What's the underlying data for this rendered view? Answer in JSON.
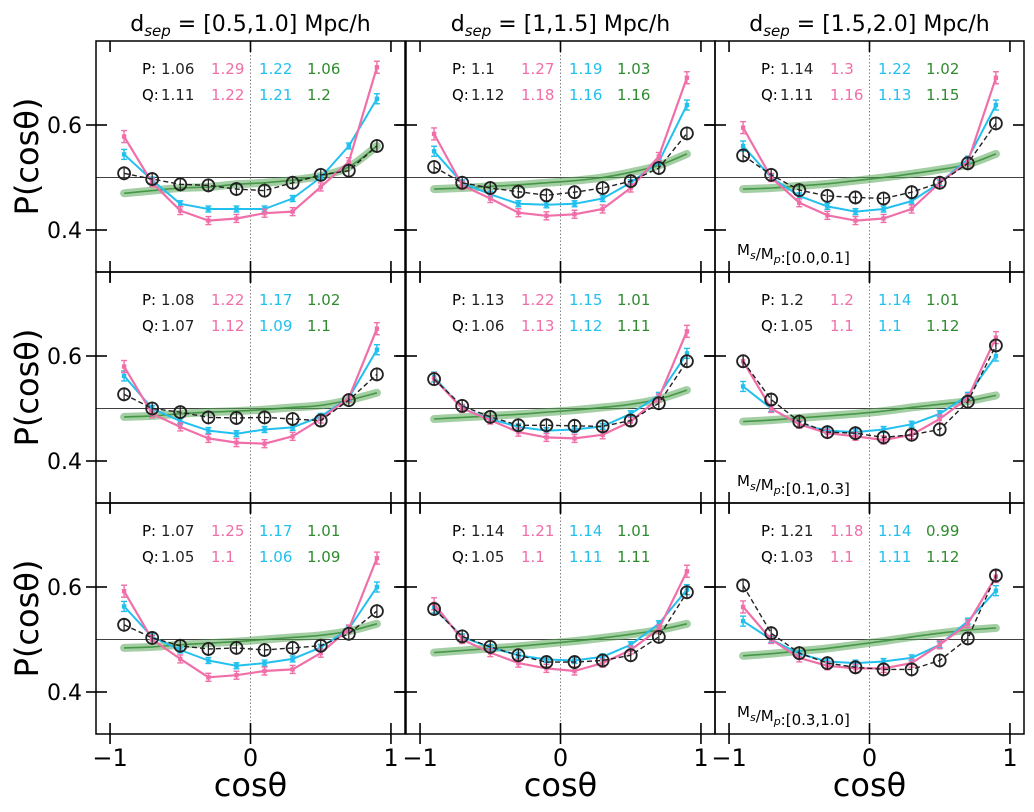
{
  "figure": {
    "ylabel": "P(cosθ)",
    "xlabel": "cosθ",
    "row_labels": [
      "M_s/M_p:[0.0,0.1]",
      "M_s/M_p:[0.1,0.3]",
      "M_s/M_p:[0.3,1.0]"
    ],
    "col_titles": [
      {
        "pre": "d",
        "sub": "sep",
        "post": " = [0.5,1.0] Mpc/h"
      },
      {
        "pre": "d",
        "sub": "sep",
        "post": " = [1,1.5] Mpc/h"
      },
      {
        "pre": "d",
        "sub": "sep",
        "post": " = [1.5,2.0] Mpc/h"
      }
    ],
    "colors": {
      "pink": "#f06fa8",
      "blue": "#22c0ef",
      "green": "#2e8b2e",
      "black": "#222222",
      "band": "#5aa65a"
    }
  },
  "chart_data": [
    {
      "type": "line",
      "row": 0,
      "col": 0,
      "title": "d_sep = [0.5,1.0] Mpc/h",
      "xlabel": "cosθ",
      "ylabel": "P(cosθ)",
      "xlim": [
        -1.1,
        1.1
      ],
      "ylim": [
        0.32,
        0.76
      ],
      "xticks": [
        -1,
        0,
        1
      ],
      "yticks": [
        0.4,
        0.6
      ],
      "reference_y": 0.5,
      "x": [
        -0.9,
        -0.7,
        -0.5,
        -0.3,
        -0.1,
        0.1,
        0.3,
        0.5,
        0.7,
        0.9
      ],
      "stats": {
        "P": [
          "1.06",
          "1.29",
          "1.22",
          "1.06"
        ],
        "Q": [
          "1.11",
          "1.22",
          "1.21",
          "1.2"
        ]
      },
      "series": [
        {
          "name": "pink",
          "values": [
            0.578,
            0.49,
            0.437,
            0.418,
            0.422,
            0.432,
            0.435,
            0.482,
            0.53,
            0.71
          ]
        },
        {
          "name": "blue",
          "values": [
            0.544,
            0.495,
            0.45,
            0.44,
            0.44,
            0.44,
            0.46,
            0.5,
            0.56,
            0.65
          ]
        },
        {
          "name": "black",
          "values": [
            0.508,
            0.497,
            0.487,
            0.485,
            0.478,
            0.475,
            0.49,
            0.505,
            0.513,
            0.56
          ]
        },
        {
          "name": "green",
          "values": [
            0.47,
            0.475,
            0.48,
            0.482,
            0.487,
            0.49,
            0.495,
            0.503,
            0.52,
            0.56
          ]
        }
      ]
    },
    {
      "type": "line",
      "row": 0,
      "col": 1,
      "title": "d_sep = [1,1.5] Mpc/h",
      "xlabel": "cosθ",
      "ylabel": "P(cosθ)",
      "xlim": [
        -1.1,
        1.1
      ],
      "ylim": [
        0.32,
        0.76
      ],
      "xticks": [
        -1,
        0,
        1
      ],
      "yticks": [
        0.4,
        0.6
      ],
      "reference_y": 0.5,
      "x": [
        -0.9,
        -0.7,
        -0.5,
        -0.3,
        -0.1,
        0.1,
        0.3,
        0.5,
        0.7,
        0.9
      ],
      "stats": {
        "P": [
          "1.1",
          "1.27",
          "1.19",
          "1.03"
        ],
        "Q": [
          "1.12",
          "1.18",
          "1.16",
          "1.16"
        ]
      },
      "series": [
        {
          "name": "pink",
          "values": [
            0.583,
            0.485,
            0.46,
            0.433,
            0.427,
            0.43,
            0.44,
            0.48,
            0.54,
            0.69
          ]
        },
        {
          "name": "blue",
          "values": [
            0.55,
            0.49,
            0.468,
            0.45,
            0.448,
            0.45,
            0.46,
            0.49,
            0.53,
            0.638
          ]
        },
        {
          "name": "black",
          "values": [
            0.52,
            0.49,
            0.48,
            0.473,
            0.466,
            0.472,
            0.48,
            0.493,
            0.518,
            0.584
          ]
        },
        {
          "name": "green",
          "values": [
            0.478,
            0.48,
            0.483,
            0.486,
            0.49,
            0.494,
            0.5,
            0.51,
            0.523,
            0.545
          ]
        }
      ]
    },
    {
      "type": "line",
      "row": 0,
      "col": 2,
      "title": "d_sep = [1.5,2.0] Mpc/h",
      "xlabel": "cosθ",
      "ylabel": "P(cosθ)",
      "xlim": [
        -1.1,
        1.1
      ],
      "ylim": [
        0.32,
        0.76
      ],
      "xticks": [
        -1,
        0,
        1
      ],
      "yticks": [
        0.4,
        0.6
      ],
      "reference_y": 0.5,
      "x": [
        -0.9,
        -0.7,
        -0.5,
        -0.3,
        -0.1,
        0.1,
        0.3,
        0.5,
        0.7,
        0.9
      ],
      "stats": {
        "P": [
          "1.14",
          "1.3",
          "1.22",
          "1.02"
        ],
        "Q": [
          "1.11",
          "1.16",
          "1.13",
          "1.15"
        ]
      },
      "series": [
        {
          "name": "pink",
          "values": [
            0.595,
            0.5,
            0.452,
            0.428,
            0.418,
            0.422,
            0.44,
            0.49,
            0.53,
            0.69
          ]
        },
        {
          "name": "blue",
          "values": [
            0.56,
            0.5,
            0.465,
            0.445,
            0.435,
            0.44,
            0.455,
            0.49,
            0.535,
            0.638
          ]
        },
        {
          "name": "black",
          "values": [
            0.542,
            0.505,
            0.476,
            0.465,
            0.462,
            0.46,
            0.472,
            0.49,
            0.527,
            0.603
          ]
        },
        {
          "name": "green",
          "values": [
            0.478,
            0.48,
            0.484,
            0.488,
            0.494,
            0.5,
            0.507,
            0.515,
            0.525,
            0.545
          ]
        }
      ]
    },
    {
      "type": "line",
      "row": 1,
      "col": 0,
      "title": "d_sep = [0.5,1.0] Mpc/h",
      "xlabel": "cosθ",
      "ylabel": "P(cosθ)",
      "xlim": [
        -1.1,
        1.1
      ],
      "ylim": [
        0.32,
        0.76
      ],
      "xticks": [
        -1,
        0,
        1
      ],
      "yticks": [
        0.4,
        0.6
      ],
      "reference_y": 0.5,
      "x": [
        -0.9,
        -0.7,
        -0.5,
        -0.3,
        -0.1,
        0.1,
        0.3,
        0.5,
        0.7,
        0.9
      ],
      "stats": {
        "P": [
          "1.08",
          "1.22",
          "1.17",
          "1.02"
        ],
        "Q": [
          "1.07",
          "1.12",
          "1.09",
          "1.1"
        ]
      },
      "series": [
        {
          "name": "pink",
          "values": [
            0.58,
            0.49,
            0.465,
            0.443,
            0.435,
            0.433,
            0.447,
            0.48,
            0.52,
            0.652
          ]
        },
        {
          "name": "blue",
          "values": [
            0.562,
            0.5,
            0.476,
            0.458,
            0.452,
            0.46,
            0.464,
            0.485,
            0.52,
            0.612
          ]
        },
        {
          "name": "black",
          "values": [
            0.527,
            0.5,
            0.493,
            0.483,
            0.482,
            0.483,
            0.48,
            0.477,
            0.516,
            0.565
          ]
        },
        {
          "name": "green",
          "values": [
            0.484,
            0.486,
            0.49,
            0.493,
            0.495,
            0.498,
            0.502,
            0.506,
            0.516,
            0.53
          ]
        }
      ]
    },
    {
      "type": "line",
      "row": 1,
      "col": 1,
      "title": "d_sep = [1,1.5] Mpc/h",
      "xlabel": "cosθ",
      "ylabel": "P(cosθ)",
      "xlim": [
        -1.1,
        1.1
      ],
      "ylim": [
        0.32,
        0.76
      ],
      "xticks": [
        -1,
        0,
        1
      ],
      "yticks": [
        0.4,
        0.6
      ],
      "reference_y": 0.5,
      "x": [
        -0.9,
        -0.7,
        -0.5,
        -0.3,
        -0.1,
        0.1,
        0.3,
        0.5,
        0.7,
        0.9
      ],
      "stats": {
        "P": [
          "1.13",
          "1.22",
          "1.15",
          "1.01"
        ],
        "Q": [
          "1.06",
          "1.13",
          "1.12",
          "1.11"
        ]
      },
      "series": [
        {
          "name": "pink",
          "values": [
            0.557,
            0.5,
            0.478,
            0.455,
            0.445,
            0.443,
            0.45,
            0.475,
            0.52,
            0.647
          ]
        },
        {
          "name": "blue",
          "values": [
            0.56,
            0.5,
            0.48,
            0.465,
            0.458,
            0.46,
            0.466,
            0.49,
            0.525,
            0.605
          ]
        },
        {
          "name": "black",
          "values": [
            0.556,
            0.505,
            0.484,
            0.468,
            0.468,
            0.467,
            0.466,
            0.477,
            0.51,
            0.59
          ]
        },
        {
          "name": "green",
          "values": [
            0.48,
            0.483,
            0.486,
            0.489,
            0.493,
            0.497,
            0.502,
            0.508,
            0.518,
            0.535
          ]
        }
      ]
    },
    {
      "type": "line",
      "row": 1,
      "col": 2,
      "title": "d_sep = [1.5,2.0] Mpc/h",
      "xlabel": "cosθ",
      "ylabel": "P(cosθ)",
      "xlim": [
        -1.1,
        1.1
      ],
      "ylim": [
        0.32,
        0.76
      ],
      "xticks": [
        -1,
        0,
        1
      ],
      "yticks": [
        0.4,
        0.6
      ],
      "reference_y": 0.5,
      "x": [
        -0.9,
        -0.7,
        -0.5,
        -0.3,
        -0.1,
        0.1,
        0.3,
        0.5,
        0.7,
        0.9
      ],
      "stats": {
        "P": [
          "1.2",
          "1.2",
          "1.14",
          "1.01"
        ],
        "Q": [
          "1.05",
          "1.1",
          "1.1",
          "1.12"
        ]
      },
      "series": [
        {
          "name": "pink",
          "values": [
            0.59,
            0.5,
            0.47,
            0.453,
            0.447,
            0.44,
            0.45,
            0.48,
            0.52,
            0.635
          ]
        },
        {
          "name": "blue",
          "values": [
            0.542,
            0.5,
            0.47,
            0.458,
            0.455,
            0.46,
            0.47,
            0.49,
            0.525,
            0.6
          ]
        },
        {
          "name": "black",
          "values": [
            0.59,
            0.517,
            0.475,
            0.455,
            0.453,
            0.445,
            0.45,
            0.46,
            0.513,
            0.62
          ]
        },
        {
          "name": "green",
          "values": [
            0.475,
            0.478,
            0.482,
            0.486,
            0.49,
            0.495,
            0.502,
            0.508,
            0.514,
            0.525
          ]
        }
      ]
    },
    {
      "type": "line",
      "row": 2,
      "col": 0,
      "title": "d_sep = [0.5,1.0] Mpc/h",
      "xlabel": "cosθ",
      "ylabel": "P(cosθ)",
      "xlim": [
        -1.1,
        1.1
      ],
      "ylim": [
        0.32,
        0.76
      ],
      "xticks": [
        -1,
        0,
        1
      ],
      "yticks": [
        0.4,
        0.6
      ],
      "reference_y": 0.5,
      "x": [
        -0.9,
        -0.7,
        -0.5,
        -0.3,
        -0.1,
        0.1,
        0.3,
        0.5,
        0.7,
        0.9
      ],
      "stats": {
        "P": [
          "1.07",
          "1.25",
          "1.17",
          "1.01"
        ],
        "Q": [
          "1.05",
          "1.1",
          "1.06",
          "1.09"
        ]
      },
      "series": [
        {
          "name": "pink",
          "values": [
            0.592,
            0.5,
            0.463,
            0.428,
            0.432,
            0.44,
            0.443,
            0.474,
            0.52,
            0.655
          ]
        },
        {
          "name": "blue",
          "values": [
            0.563,
            0.505,
            0.48,
            0.46,
            0.45,
            0.455,
            0.463,
            0.485,
            0.52,
            0.6
          ]
        },
        {
          "name": "black",
          "values": [
            0.528,
            0.503,
            0.488,
            0.482,
            0.484,
            0.48,
            0.484,
            0.488,
            0.511,
            0.554
          ]
        },
        {
          "name": "green",
          "values": [
            0.484,
            0.486,
            0.49,
            0.493,
            0.496,
            0.5,
            0.504,
            0.508,
            0.516,
            0.53
          ]
        }
      ]
    },
    {
      "type": "line",
      "row": 2,
      "col": 1,
      "title": "d_sep = [1,1.5] Mpc/h",
      "xlabel": "cosθ",
      "ylabel": "P(cosθ)",
      "xlim": [
        -1.1,
        1.1
      ],
      "ylim": [
        0.32,
        0.76
      ],
      "xticks": [
        -1,
        0,
        1
      ],
      "yticks": [
        0.4,
        0.6
      ],
      "reference_y": 0.5,
      "x": [
        -0.9,
        -0.7,
        -0.5,
        -0.3,
        -0.1,
        0.1,
        0.3,
        0.5,
        0.7,
        0.9
      ],
      "stats": {
        "P": [
          "1.14",
          "1.21",
          "1.14",
          "1.01"
        ],
        "Q": [
          "1.05",
          "1.1",
          "1.11",
          "1.11"
        ]
      },
      "series": [
        {
          "name": "pink",
          "values": [
            0.568,
            0.5,
            0.475,
            0.455,
            0.445,
            0.44,
            0.455,
            0.48,
            0.52,
            0.63
          ]
        },
        {
          "name": "blue",
          "values": [
            0.56,
            0.505,
            0.485,
            0.47,
            0.462,
            0.46,
            0.467,
            0.49,
            0.53,
            0.595
          ]
        },
        {
          "name": "black",
          "values": [
            0.558,
            0.506,
            0.486,
            0.47,
            0.457,
            0.457,
            0.46,
            0.47,
            0.505,
            0.59
          ]
        },
        {
          "name": "green",
          "values": [
            0.475,
            0.479,
            0.483,
            0.487,
            0.492,
            0.497,
            0.503,
            0.51,
            0.518,
            0.53
          ]
        }
      ]
    },
    {
      "type": "line",
      "row": 2,
      "col": 2,
      "title": "d_sep = [1.5,2.0] Mpc/h",
      "xlabel": "cosθ",
      "ylabel": "P(cosθ)",
      "xlim": [
        -1.1,
        1.1
      ],
      "ylim": [
        0.32,
        0.76
      ],
      "xticks": [
        -1,
        0,
        1
      ],
      "yticks": [
        0.4,
        0.6
      ],
      "reference_y": 0.5,
      "x": [
        -0.9,
        -0.7,
        -0.5,
        -0.3,
        -0.1,
        0.1,
        0.3,
        0.5,
        0.7,
        0.9
      ],
      "stats": {
        "P": [
          "1.21",
          "1.18",
          "1.14",
          "0.99"
        ],
        "Q": [
          "1.03",
          "1.1",
          "1.11",
          "1.12"
        ]
      },
      "series": [
        {
          "name": "pink",
          "values": [
            0.562,
            0.5,
            0.465,
            0.45,
            0.445,
            0.445,
            0.455,
            0.49,
            0.53,
            0.62
          ]
        },
        {
          "name": "blue",
          "values": [
            0.535,
            0.5,
            0.473,
            0.458,
            0.455,
            0.458,
            0.465,
            0.49,
            0.535,
            0.593
          ]
        },
        {
          "name": "black",
          "values": [
            0.603,
            0.512,
            0.474,
            0.455,
            0.447,
            0.443,
            0.443,
            0.46,
            0.502,
            0.622
          ]
        },
        {
          "name": "green",
          "values": [
            0.469,
            0.473,
            0.478,
            0.483,
            0.49,
            0.497,
            0.505,
            0.512,
            0.518,
            0.522
          ]
        }
      ]
    }
  ]
}
